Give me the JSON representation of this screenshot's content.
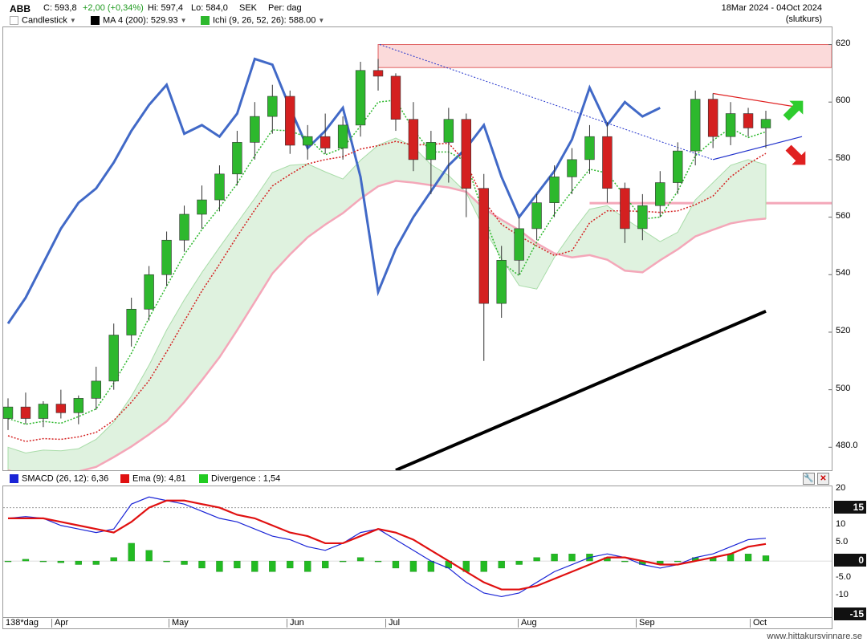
{
  "header": {
    "ticker": "ABB",
    "close_label": "C: 593,8",
    "change_label": "+2,00 (+0,34%)",
    "high_label": "Hi: 597,4",
    "low_label": "Lo: 584,0",
    "currency": "SEK",
    "period_label": "Per: dag",
    "date_range": "18Mar 2024 - 04Oct 2024",
    "price_type": "(slutkurs)"
  },
  "legend_main": {
    "candlestick": "Candlestick",
    "ma": "MA 4 (200): 529.93",
    "ichi": "Ichi (9, 26, 52, 26): 588.00"
  },
  "legend_macd": {
    "smacd": "SMACD (26, 12): 6,36",
    "ema": "Ema (9): 4,81",
    "divergence": "Divergence : 1,54"
  },
  "bottom": {
    "days_label": "138*dag",
    "months": [
      "Apr",
      "May",
      "Jun",
      "Jul",
      "Aug",
      "Sep",
      "Oct"
    ],
    "watermark": "www.hittakursvinnare.se"
  },
  "colors": {
    "up": "#2db82d",
    "down": "#d42020",
    "tenkan": "#2db82d",
    "kijun": "#d42020",
    "chikou": "#4169c7",
    "cloud": "#dff2df",
    "senkou_b": "#f4a7b9",
    "ma": "#000000",
    "smacd": "#1a24d6",
    "ema": "#e01010",
    "divergence": "#22bb22"
  },
  "chart_data": [
    {
      "type": "candlestick",
      "title": "ABB",
      "y_ticks": [
        480,
        500,
        520,
        540,
        560,
        580,
        600,
        620
      ],
      "y_tick_labels": [
        "480.0",
        "500",
        "520",
        "540",
        "560",
        "580",
        "600",
        "620"
      ],
      "ylim": [
        472,
        626
      ],
      "x_labels": [
        "Apr",
        "May",
        "Jun",
        "Jul",
        "Aug",
        "Sep",
        "Oct"
      ],
      "last_close": 593.8,
      "high": 597.4,
      "low": 584.0,
      "ma_200_last": 529.93,
      "ichimoku_last": 588.0,
      "resistance_zone": [
        612,
        620
      ],
      "support_level": 565,
      "candles_sample": [
        {
          "o": 490,
          "h": 497,
          "l": 486,
          "c": 494
        },
        {
          "o": 494,
          "h": 499,
          "l": 488,
          "c": 490
        },
        {
          "o": 490,
          "h": 496,
          "l": 487,
          "c": 495
        },
        {
          "o": 495,
          "h": 500,
          "l": 490,
          "c": 492
        },
        {
          "o": 492,
          "h": 498,
          "l": 488,
          "c": 497
        },
        {
          "o": 497,
          "h": 508,
          "l": 493,
          "c": 503
        },
        {
          "o": 503,
          "h": 523,
          "l": 500,
          "c": 519
        },
        {
          "o": 519,
          "h": 532,
          "l": 515,
          "c": 528
        },
        {
          "o": 528,
          "h": 543,
          "l": 524,
          "c": 540
        },
        {
          "o": 540,
          "h": 555,
          "l": 536,
          "c": 552
        },
        {
          "o": 552,
          "h": 564,
          "l": 548,
          "c": 561
        },
        {
          "o": 561,
          "h": 571,
          "l": 556,
          "c": 566
        },
        {
          "o": 566,
          "h": 578,
          "l": 562,
          "c": 575
        },
        {
          "o": 575,
          "h": 590,
          "l": 571,
          "c": 586
        },
        {
          "o": 586,
          "h": 600,
          "l": 580,
          "c": 595
        },
        {
          "o": 595,
          "h": 606,
          "l": 589,
          "c": 602
        },
        {
          "o": 602,
          "h": 604,
          "l": 582,
          "c": 585
        },
        {
          "o": 585,
          "h": 592,
          "l": 580,
          "c": 588
        },
        {
          "o": 588,
          "h": 596,
          "l": 582,
          "c": 584
        },
        {
          "o": 584,
          "h": 595,
          "l": 580,
          "c": 592
        },
        {
          "o": 592,
          "h": 614,
          "l": 588,
          "c": 611
        },
        {
          "o": 611,
          "h": 615,
          "l": 604,
          "c": 609
        },
        {
          "o": 609,
          "h": 610,
          "l": 590,
          "c": 594
        },
        {
          "o": 594,
          "h": 600,
          "l": 576,
          "c": 580
        },
        {
          "o": 580,
          "h": 590,
          "l": 568,
          "c": 586
        },
        {
          "o": 586,
          "h": 598,
          "l": 572,
          "c": 594
        },
        {
          "o": 594,
          "h": 596,
          "l": 560,
          "c": 570
        },
        {
          "o": 570,
          "h": 575,
          "l": 510,
          "c": 530
        },
        {
          "o": 530,
          "h": 550,
          "l": 525,
          "c": 545
        },
        {
          "o": 545,
          "h": 560,
          "l": 540,
          "c": 556
        },
        {
          "o": 556,
          "h": 568,
          "l": 552,
          "c": 565
        },
        {
          "o": 565,
          "h": 578,
          "l": 560,
          "c": 574
        },
        {
          "o": 574,
          "h": 584,
          "l": 568,
          "c": 580
        },
        {
          "o": 580,
          "h": 592,
          "l": 575,
          "c": 588
        },
        {
          "o": 588,
          "h": 593,
          "l": 565,
          "c": 570
        },
        {
          "o": 570,
          "h": 572,
          "l": 551,
          "c": 556
        },
        {
          "o": 556,
          "h": 568,
          "l": 552,
          "c": 564
        },
        {
          "o": 564,
          "h": 576,
          "l": 560,
          "c": 572
        },
        {
          "o": 572,
          "h": 586,
          "l": 568,
          "c": 583
        },
        {
          "o": 583,
          "h": 604,
          "l": 578,
          "c": 601
        },
        {
          "o": 601,
          "h": 603,
          "l": 584,
          "c": 588
        },
        {
          "o": 588,
          "h": 600,
          "l": 585,
          "c": 596
        },
        {
          "o": 596,
          "h": 598,
          "l": 588,
          "c": 591
        },
        {
          "o": 591,
          "h": 597,
          "l": 584,
          "c": 594
        }
      ]
    },
    {
      "type": "line",
      "title": "SMACD",
      "y_ticks": [
        20,
        15,
        10,
        5,
        0,
        -5,
        -10,
        -15
      ],
      "y_tick_labels": [
        "20",
        "15",
        "10",
        "5.0",
        "0",
        "-5.0",
        "-10",
        "-15"
      ],
      "ylim": [
        -16,
        21
      ],
      "highlight_labels": [
        "15",
        "0",
        "-15"
      ],
      "series": [
        {
          "name": "SMACD (26, 12): 6,36",
          "values": [
            12,
            12.5,
            12,
            10,
            9,
            8,
            9,
            16,
            18,
            17,
            16,
            14,
            12,
            11,
            9,
            7,
            6,
            4,
            3,
            5,
            8,
            9,
            6,
            3,
            0,
            -2,
            -6,
            -9,
            -10,
            -9,
            -6,
            -3,
            -1,
            1,
            2,
            1,
            -1,
            -2,
            -1,
            1,
            2,
            4,
            6,
            6.4
          ]
        },
        {
          "name": "Ema (9): 4,81",
          "values": [
            12,
            12,
            12,
            11,
            10,
            9,
            8,
            11,
            15,
            17,
            17,
            16,
            15,
            13,
            12,
            10,
            8,
            7,
            5,
            5,
            7,
            9,
            8,
            6,
            3,
            0,
            -3,
            -6,
            -8,
            -8,
            -7,
            -5,
            -3,
            -1,
            1,
            1,
            0,
            -1,
            -1,
            0,
            1,
            2,
            4,
            4.8
          ]
        },
        {
          "name": "Divergence : 1,54",
          "type": "bar",
          "values": [
            0,
            0.5,
            0,
            -0.5,
            -1,
            -1,
            1,
            5,
            3,
            0,
            -1,
            -2,
            -3,
            -2,
            -3,
            -3,
            -2,
            -3,
            -2,
            0,
            1,
            0,
            -2,
            -3,
            -3,
            -2,
            -3,
            -3,
            -2,
            -1,
            1,
            2,
            2,
            2,
            1,
            0,
            -1,
            -1,
            0,
            1,
            1,
            2,
            2,
            1.5
          ]
        }
      ]
    }
  ]
}
